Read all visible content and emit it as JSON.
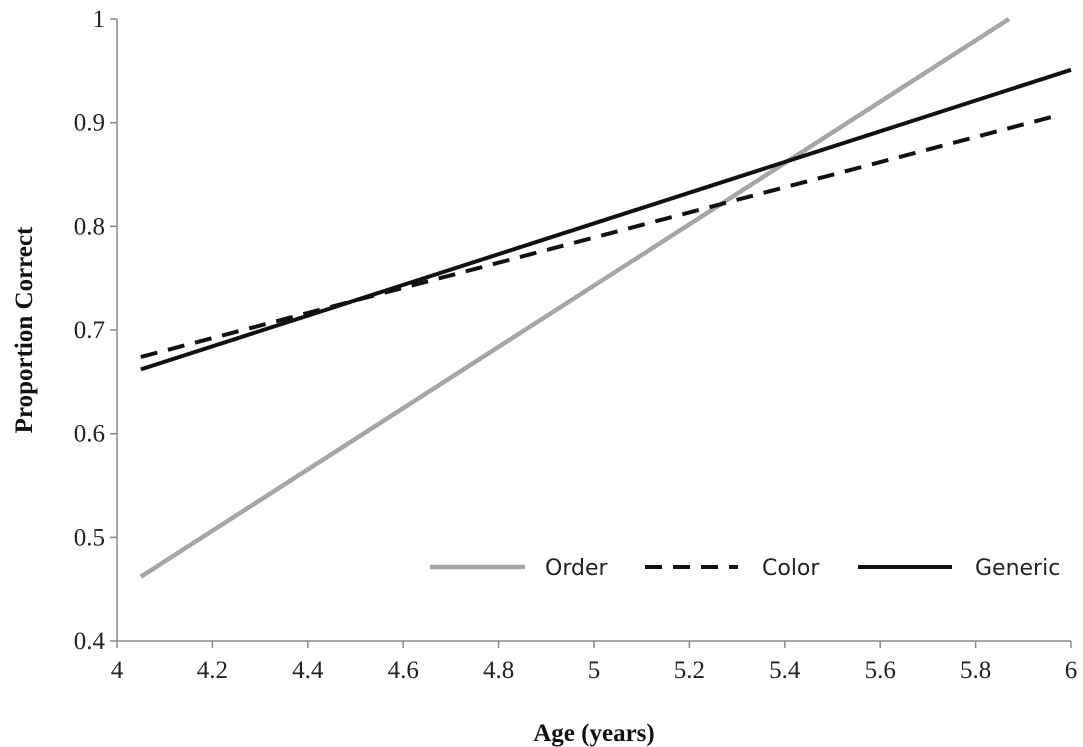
{
  "chart_data": {
    "type": "line",
    "xlabel": "Age (years)",
    "ylabel": "Proportion Correct",
    "xlim": [
      4,
      6
    ],
    "ylim": [
      0.4,
      1
    ],
    "x_ticks": [
      4,
      4.2,
      4.4,
      4.6,
      4.8,
      5,
      5.2,
      5.4,
      5.6,
      5.8,
      6
    ],
    "x_tick_labels": [
      "4",
      "4.2",
      "4.4",
      "4.6",
      "4.8",
      "5",
      "5.2",
      "5.4",
      "5.6",
      "5.8",
      "6"
    ],
    "y_ticks": [
      0.4,
      0.5,
      0.6,
      0.7,
      0.8,
      0.9,
      1
    ],
    "y_tick_labels": [
      "0.4",
      "0.5",
      "0.6",
      "0.7",
      "0.8",
      "0.9",
      "1"
    ],
    "grid": false,
    "legend": "bottom-right",
    "series": [
      {
        "name": "Order",
        "color": "#a6a6a6",
        "dash": "solid",
        "x": [
          4.05,
          5.87
        ],
        "y": [
          0.462,
          1.0
        ]
      },
      {
        "name": "Color",
        "color": "#111111",
        "dash": "dashed",
        "x": [
          4.05,
          5.98
        ],
        "y": [
          0.674,
          0.908
        ]
      },
      {
        "name": "Generic",
        "color": "#111111",
        "dash": "solid",
        "x": [
          4.05,
          6.0
        ],
        "y": [
          0.662,
          0.951
        ]
      }
    ]
  }
}
